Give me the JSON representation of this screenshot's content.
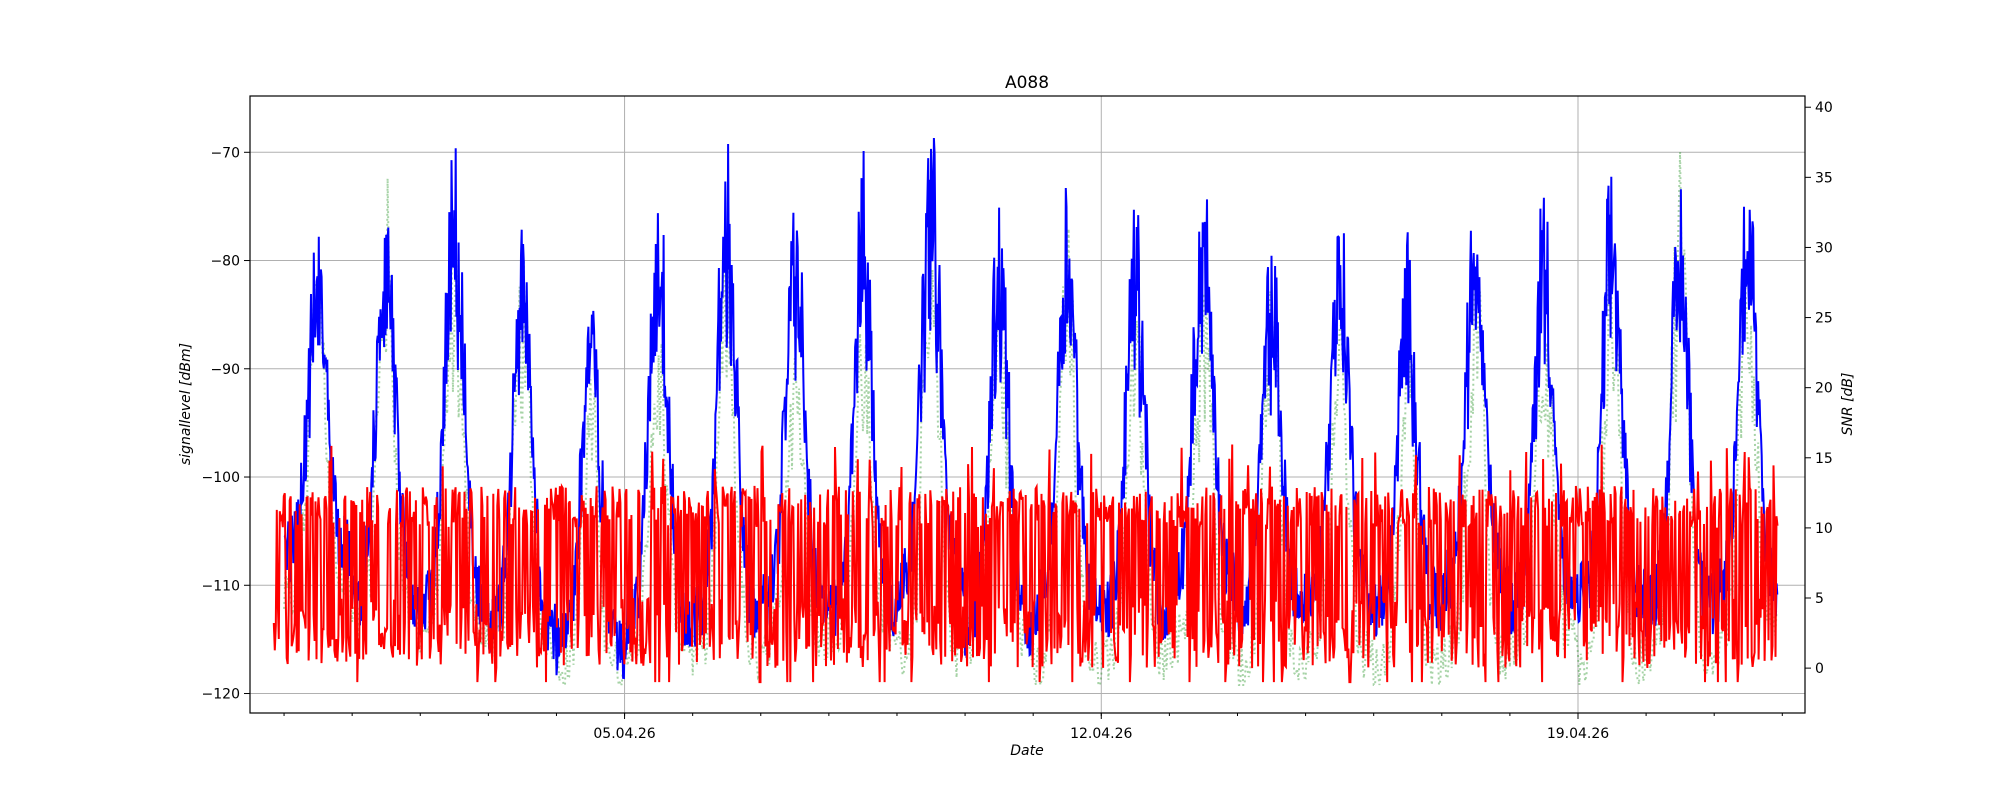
{
  "chart_data": {
    "type": "line",
    "title": "A088",
    "xlabel": "Date",
    "ylabel_left": "signallevel [dBm]",
    "ylabel_right": "SNR [dB]",
    "x_range": [
      "2026-03-30T12:00",
      "2026-04-22T08:00"
    ],
    "x_major_ticks": [
      "05.04.26",
      "12.04.26",
      "19.04.26"
    ],
    "x_major_tick_dates": [
      "2026-04-05",
      "2026-04-12",
      "2026-04-19"
    ],
    "ylim_left": [
      -121.8,
      -64.8
    ],
    "ylim_right": [
      -3.2,
      40.8
    ],
    "yticks_left": [
      "-120",
      "-110",
      "-100",
      "-90",
      "-80",
      "-70"
    ],
    "yticks_right": [
      "0",
      "5",
      "10",
      "15",
      "20",
      "25",
      "30",
      "35",
      "40"
    ],
    "grid": true,
    "colors": {
      "signal_level": "#0000ff",
      "snr": "#ff0000",
      "snr_overlay": "#008000"
    },
    "series": [
      {
        "axis": "left",
        "style": "solid",
        "color": "#0000ff",
        "peak_days": [
          "2026-03-31",
          "2026-04-01",
          "2026-04-02",
          "2026-04-03",
          "2026-04-04",
          "2026-04-05",
          "2026-04-06",
          "2026-04-07",
          "2026-04-08",
          "2026-04-09",
          "2026-04-10",
          "2026-04-11",
          "2026-04-12",
          "2026-04-13",
          "2026-04-14",
          "2026-04-15",
          "2026-04-16",
          "2026-04-17",
          "2026-04-18",
          "2026-04-19",
          "2026-04-20",
          "2026-04-21"
        ],
        "peak_values": [
          -78,
          -73,
          -71,
          -77,
          -82,
          -72,
          -70,
          -74,
          -72,
          -68,
          -74,
          -72,
          -75,
          -72,
          -79,
          -75,
          -79,
          -73,
          -73,
          -72,
          -74,
          -70
        ],
        "trough_values": [
          -107,
          -112,
          -112,
          -114,
          -116,
          -114,
          -113,
          -112,
          -113,
          -110,
          -114,
          -112,
          -113,
          -110,
          -112,
          -111,
          -112,
          -110,
          -112,
          -111,
          -112,
          -111
        ]
      },
      {
        "axis": "right",
        "style": "solid",
        "color": "#ff0000",
        "band_low": [
          0,
          5
        ],
        "band_high": [
          10,
          13
        ],
        "max_value": 16,
        "min_value": -1
      },
      {
        "axis": "right",
        "style": "dotted",
        "color": "#008000",
        "peak_days": [
          "2026-03-31",
          "2026-04-01",
          "2026-04-02",
          "2026-04-03",
          "2026-04-04",
          "2026-04-05",
          "2026-04-06",
          "2026-04-07",
          "2026-04-08",
          "2026-04-09",
          "2026-04-10",
          "2026-04-11",
          "2026-04-12",
          "2026-04-13",
          "2026-04-14",
          "2026-04-15",
          "2026-04-16",
          "2026-04-17",
          "2026-04-18",
          "2026-04-19",
          "2026-04-20",
          "2026-04-21"
        ],
        "peak_values": [
          33,
          35,
          32,
          30,
          21,
          25,
          32,
          27,
          26,
          31,
          30,
          32,
          27,
          29,
          30,
          27,
          26,
          31,
          30,
          33,
          38,
          33
        ],
        "trough_values": [
          5,
          3,
          3,
          2,
          0,
          2,
          1,
          2,
          3,
          1,
          2,
          0,
          1,
          2,
          0,
          1,
          0,
          1,
          2,
          0,
          1,
          2
        ]
      }
    ]
  }
}
